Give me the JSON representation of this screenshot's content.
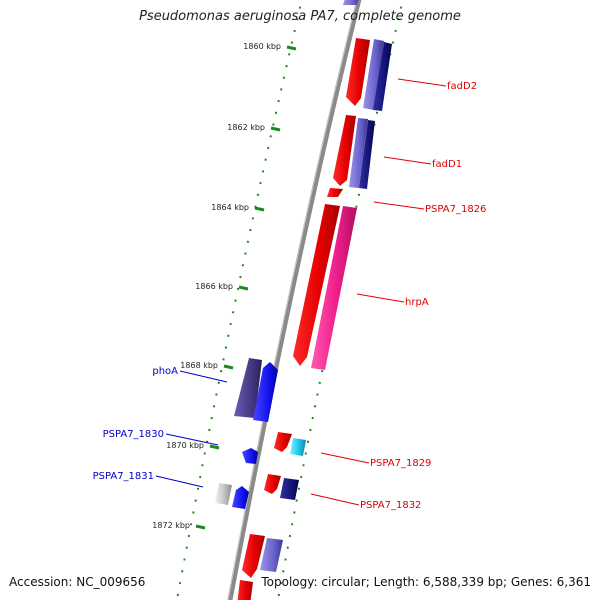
{
  "title": "Pseudomonas aeruginosa PA7, complete genome",
  "footer": {
    "accession": "Accession: NC_009656",
    "topology": "Topology: circular; Length: 6,588,339 bp; Genes: 6,361"
  },
  "colors": {
    "backbone": "#8a8a8a",
    "tick": "#1e8a1e",
    "label_forward": "#e00000",
    "label_reverse": "#0000cc"
  },
  "ticks": [
    "1860 kbp",
    "1862 kbp",
    "1864 kbp",
    "1866 kbp",
    "1868 kbp",
    "1870 kbp",
    "1872 kbp"
  ],
  "gene_labels": [
    {
      "text": "fadD2",
      "strand": "forward"
    },
    {
      "text": "fadD1",
      "strand": "forward"
    },
    {
      "text": "PSPA7_1826",
      "strand": "forward"
    },
    {
      "text": "hrpA",
      "strand": "forward"
    },
    {
      "text": "phoA",
      "strand": "reverse"
    },
    {
      "text": "PSPA7_1830",
      "strand": "reverse"
    },
    {
      "text": "PSPA7_1829",
      "strand": "forward"
    },
    {
      "text": "PSPA7_1831",
      "strand": "reverse"
    },
    {
      "text": "PSPA7_1832",
      "strand": "forward"
    }
  ]
}
